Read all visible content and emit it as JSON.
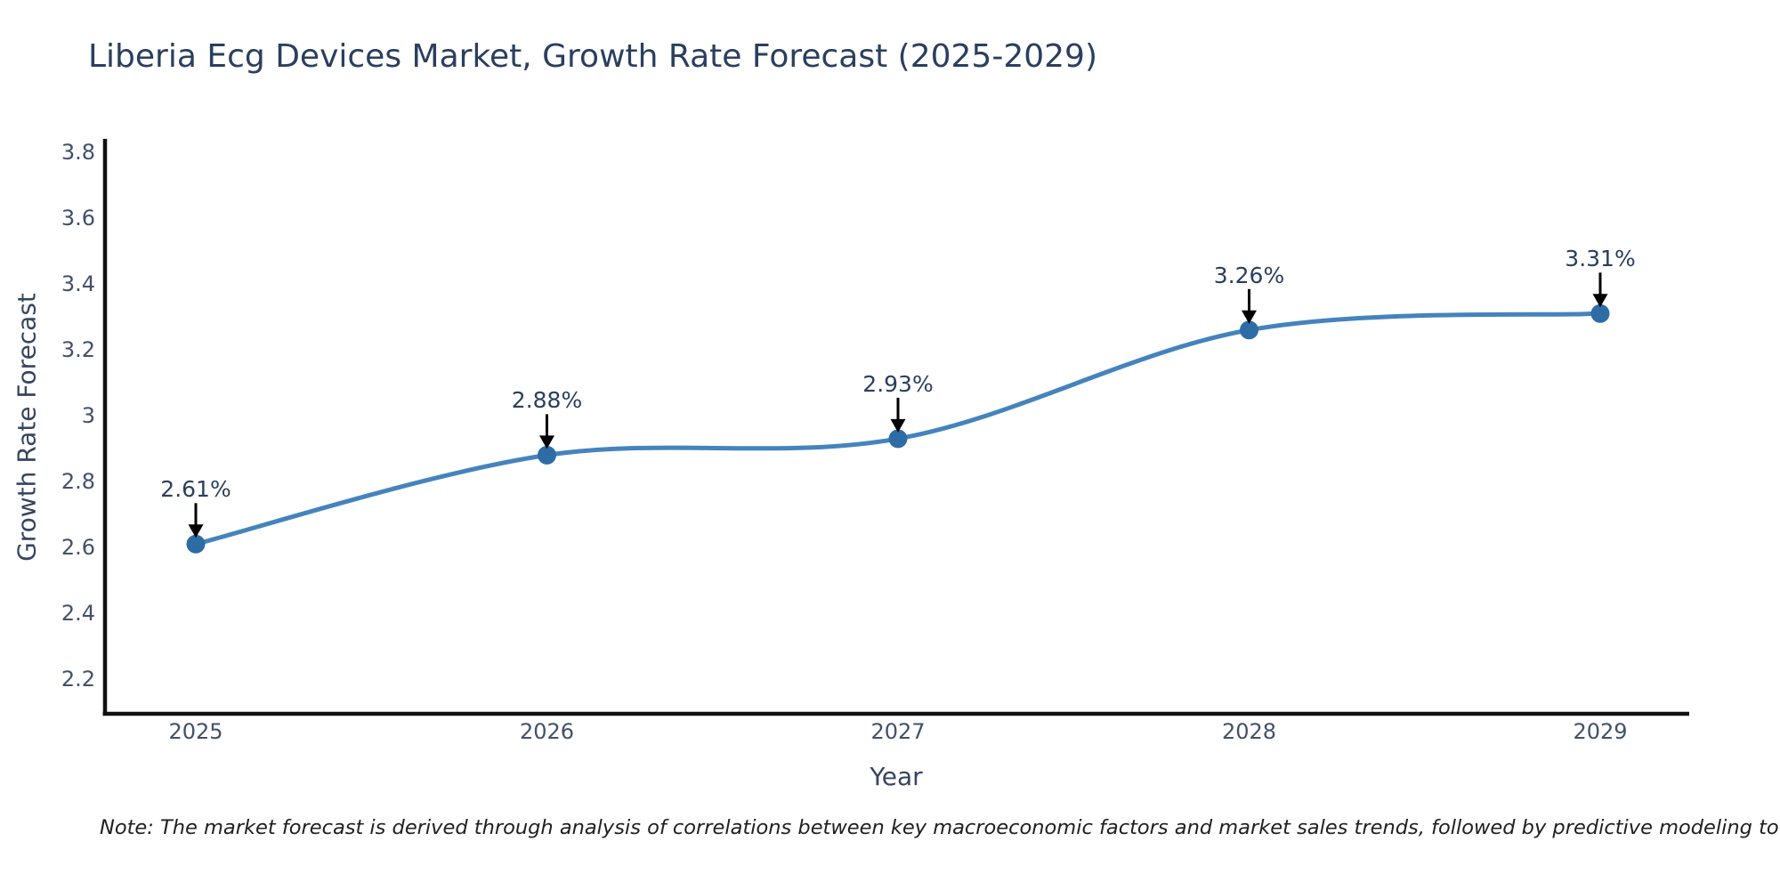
{
  "title": "Liberia Ecg Devices Market, Growth Rate Forecast (2025-2029)",
  "x_axis": {
    "title": "Year",
    "ticks": [
      "2025",
      "2026",
      "2027",
      "2028",
      "2029"
    ]
  },
  "y_axis": {
    "title": "Growth Rate Forecast",
    "ticks": [
      "3.8",
      "3.6",
      "3.4",
      "3.2",
      "3",
      "2.8",
      "2.6",
      "2.4",
      "2.2"
    ],
    "tick_values": [
      3.8,
      3.6,
      3.4,
      3.2,
      3.0,
      2.8,
      2.6,
      2.4,
      2.2
    ]
  },
  "note": "Note: The market forecast is derived through analysis of correlations between key macroeconomic factors and market sales trends, followed by predictive modeling to project future sales",
  "colors": {
    "line": "#4583bd",
    "marker": "#2e6ca6",
    "axis": "#111111",
    "arrow": "#000000",
    "title_text": "#2a3f5f",
    "tick_text": "#42506b",
    "note_text": "#1f1f1f",
    "background": "#ffffff"
  },
  "chart_data": {
    "type": "line",
    "title": "Liberia Ecg Devices Market, Growth Rate Forecast (2025-2029)",
    "xlabel": "Year",
    "ylabel": "Growth Rate Forecast",
    "x": [
      2025,
      2026,
      2027,
      2028,
      2029
    ],
    "values": [
      2.61,
      2.88,
      2.93,
      3.26,
      3.31
    ],
    "labels": [
      "2.61%",
      "2.88%",
      "2.93%",
      "3.26%",
      "3.31%"
    ],
    "line_shape": "spline",
    "markers": true,
    "ylim": [
      2.1,
      3.9
    ],
    "yticks": [
      2.2,
      2.4,
      2.6,
      2.8,
      3.0,
      3.2,
      3.4,
      3.6,
      3.8
    ],
    "grid": false,
    "legend": false,
    "annotations": "value labels with black down-arrows above each point"
  }
}
